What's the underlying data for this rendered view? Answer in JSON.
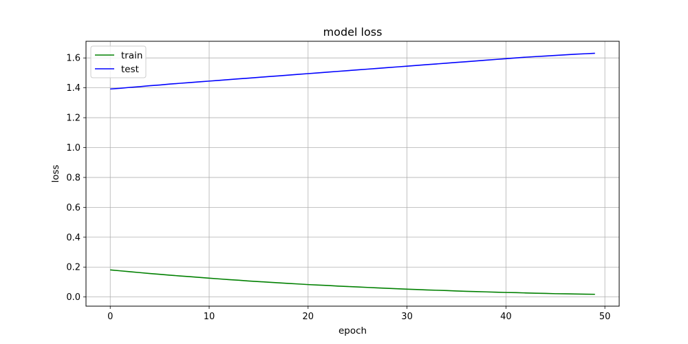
{
  "chart_data": {
    "type": "line",
    "title": "model loss",
    "xlabel": "epoch",
    "ylabel": "loss",
    "xlim": [
      -2.45,
      51.45
    ],
    "ylim": [
      -0.0615,
      1.7115
    ],
    "xticks": [
      0,
      10,
      20,
      30,
      40,
      50
    ],
    "yticks": [
      0.0,
      0.2,
      0.4,
      0.6,
      0.8,
      1.0,
      1.2,
      1.4,
      1.6
    ],
    "xtick_labels": [
      "0",
      "10",
      "20",
      "30",
      "40",
      "50"
    ],
    "ytick_labels": [
      "0.0",
      "0.2",
      "0.4",
      "0.6",
      "0.8",
      "1.0",
      "1.2",
      "1.4",
      "1.6"
    ],
    "grid": true,
    "legend": "upper-left",
    "series": [
      {
        "name": "train",
        "color": "#008000",
        "x": [
          0,
          1,
          2,
          3,
          4,
          5,
          6,
          7,
          8,
          9,
          10,
          11,
          12,
          13,
          14,
          15,
          16,
          17,
          18,
          19,
          20,
          21,
          22,
          23,
          24,
          25,
          26,
          27,
          28,
          29,
          30,
          31,
          32,
          33,
          34,
          35,
          36,
          37,
          38,
          39,
          40,
          41,
          42,
          43,
          44,
          45,
          46,
          47,
          48,
          49
        ],
        "values": [
          0.181,
          0.175,
          0.169,
          0.163,
          0.157,
          0.152,
          0.146,
          0.141,
          0.136,
          0.131,
          0.126,
          0.121,
          0.116,
          0.112,
          0.107,
          0.103,
          0.099,
          0.095,
          0.091,
          0.087,
          0.083,
          0.08,
          0.077,
          0.073,
          0.07,
          0.067,
          0.064,
          0.061,
          0.058,
          0.055,
          0.052,
          0.05,
          0.047,
          0.045,
          0.043,
          0.04,
          0.038,
          0.036,
          0.034,
          0.032,
          0.03,
          0.029,
          0.027,
          0.025,
          0.024,
          0.022,
          0.021,
          0.02,
          0.019,
          0.018
        ]
      },
      {
        "name": "test",
        "color": "#0000ff",
        "x": [
          0,
          1,
          2,
          3,
          4,
          5,
          6,
          7,
          8,
          9,
          10,
          11,
          12,
          13,
          14,
          15,
          16,
          17,
          18,
          19,
          20,
          21,
          22,
          23,
          24,
          25,
          26,
          27,
          28,
          29,
          30,
          31,
          32,
          33,
          34,
          35,
          36,
          37,
          38,
          39,
          40,
          41,
          42,
          43,
          44,
          45,
          46,
          47,
          48,
          49
        ],
        "values": [
          1.392,
          1.397,
          1.403,
          1.408,
          1.414,
          1.419,
          1.425,
          1.43,
          1.435,
          1.44,
          1.445,
          1.45,
          1.455,
          1.46,
          1.465,
          1.47,
          1.475,
          1.48,
          1.485,
          1.49,
          1.495,
          1.5,
          1.505,
          1.51,
          1.515,
          1.52,
          1.525,
          1.53,
          1.535,
          1.54,
          1.545,
          1.55,
          1.555,
          1.56,
          1.565,
          1.57,
          1.575,
          1.58,
          1.585,
          1.59,
          1.595,
          1.6,
          1.605,
          1.609,
          1.613,
          1.617,
          1.621,
          1.625,
          1.628,
          1.631
        ]
      }
    ]
  },
  "colors": {
    "grid": "#b0b0b0",
    "axes": "#000000",
    "legend_border": "#cccccc"
  }
}
